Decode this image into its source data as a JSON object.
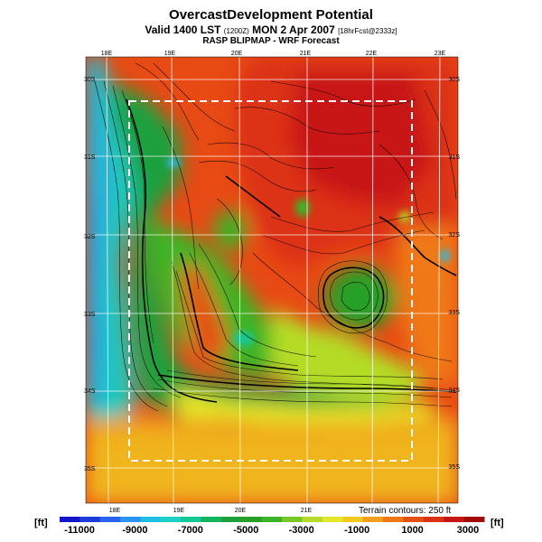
{
  "title": "OvercastDevelopment Potential",
  "subtitle": {
    "valid_prefix": "Valid 1400 LST",
    "utc": "(1200Z)",
    "date": "MON 2 Apr 2007",
    "forecast_tag": "[18hrFcst@2333z]"
  },
  "source": "RASP BLIPMAP - WRF Forecast",
  "map": {
    "lon_labels_top": [
      "18E",
      "19E",
      "20E",
      "21E",
      "22E",
      "23E"
    ],
    "lon_labels_bottom": [
      "18E",
      "19E",
      "20E",
      "21E"
    ],
    "lat_labels_left": [
      "30S",
      "31S",
      "32S",
      "33S",
      "34S",
      "35S"
    ],
    "lat_labels_right": [
      "30S",
      "31S",
      "32S",
      "33S",
      "34S",
      "35S"
    ]
  },
  "terrain_note": "Terrain contours: 250 ft",
  "colorbar": {
    "unit": "[ft]",
    "ticks": [
      "-11000",
      "-9000",
      "-7000",
      "-5000",
      "-3000",
      "-1000",
      "1000",
      "3000"
    ],
    "colors": [
      "#1414c8",
      "#1e3cdc",
      "#2864f0",
      "#2896f0",
      "#20bee6",
      "#18d2c8",
      "#14c896",
      "#14b45a",
      "#1ea03c",
      "#28a028",
      "#3cb428",
      "#78c828",
      "#b4dc28",
      "#e6e628",
      "#f0c81e",
      "#f0a01e",
      "#f07814",
      "#e65014",
      "#dc3214",
      "#c81414",
      "#a00a0a"
    ]
  }
}
